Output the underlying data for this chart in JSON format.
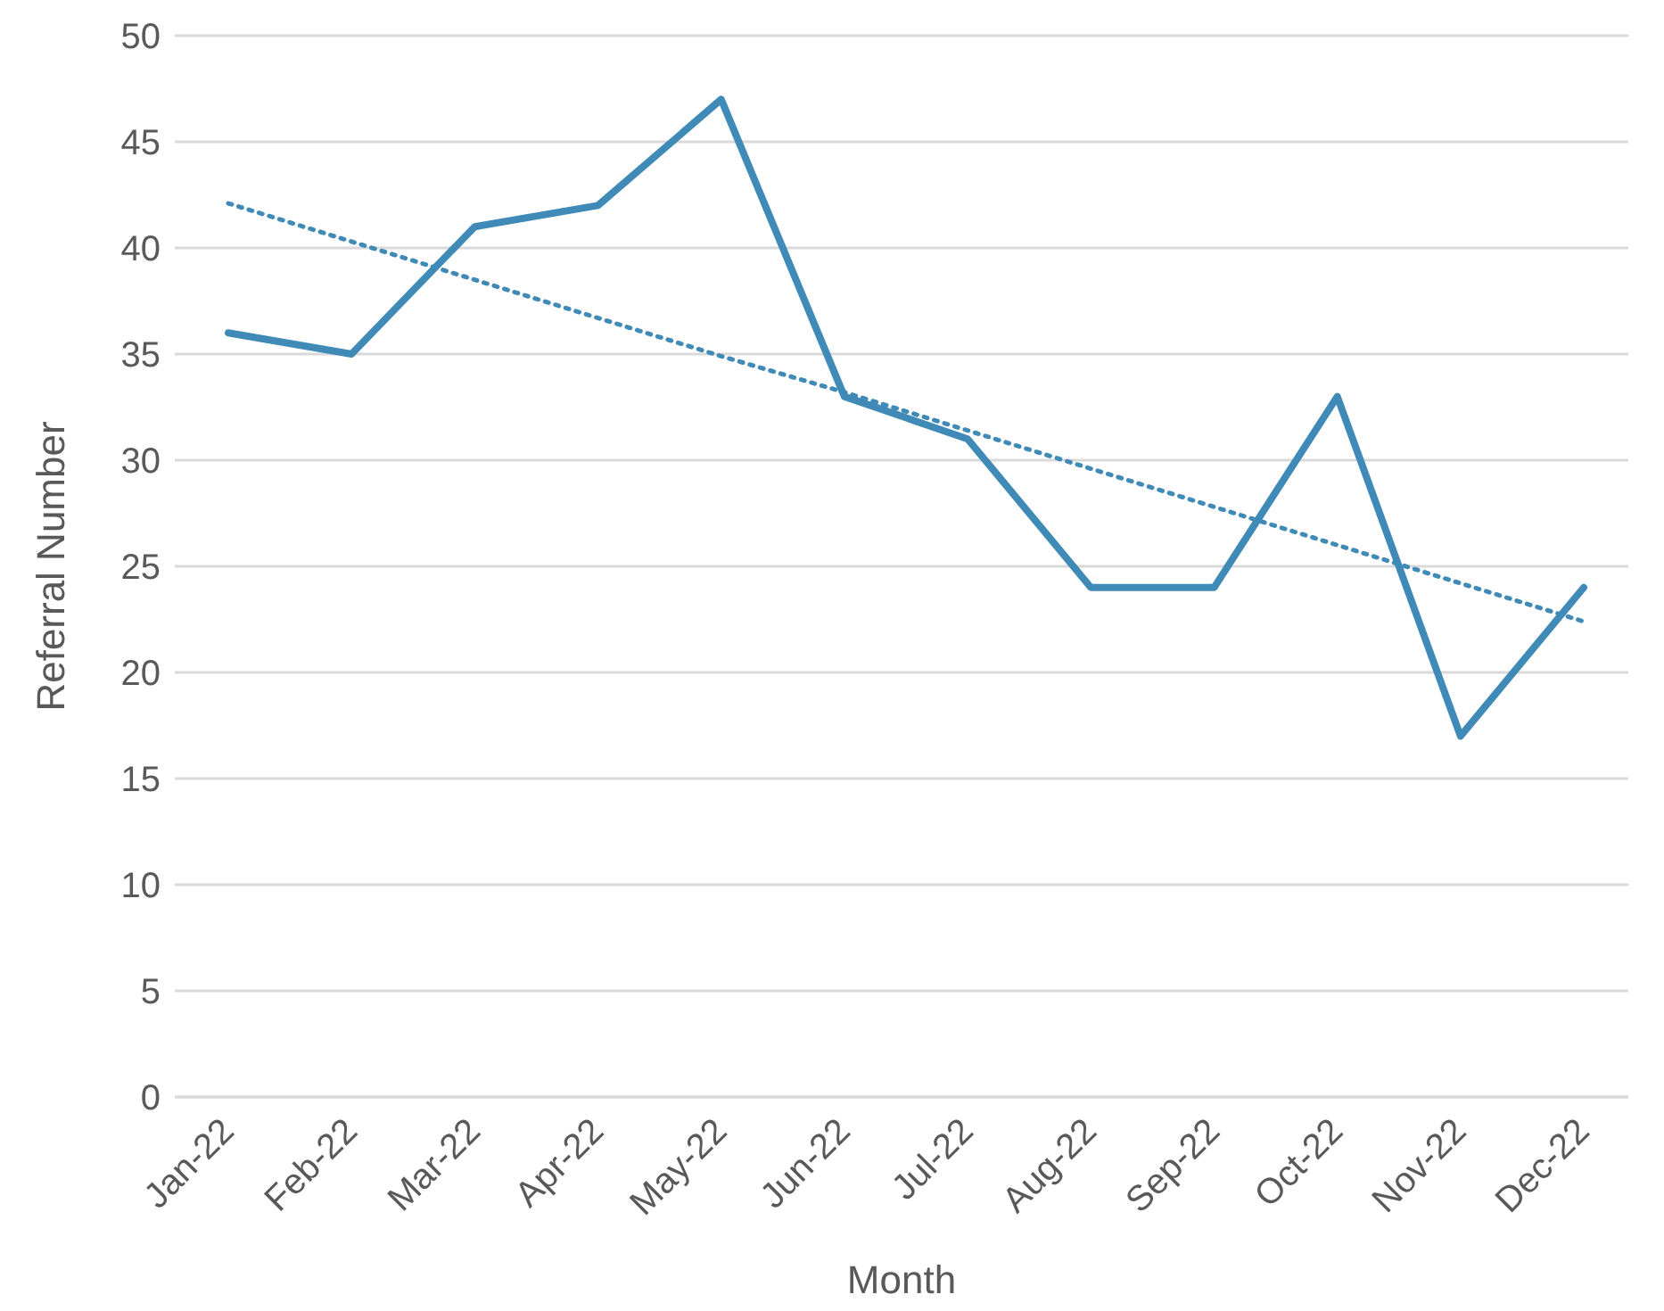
{
  "chart_data": {
    "type": "line",
    "xlabel": "Month",
    "ylabel": "Referral Number",
    "categories": [
      "Jan-22",
      "Feb-22",
      "Mar-22",
      "Apr-22",
      "May-22",
      "Jun-22",
      "Jul-22",
      "Aug-22",
      "Sep-22",
      "Oct-22",
      "Nov-22",
      "Dec-22"
    ],
    "series": [
      {
        "color": "#3f8ab7",
        "values": [
          36,
          35,
          41,
          42,
          47,
          33,
          31,
          24,
          24,
          33,
          17,
          24
        ]
      },
      {
        "color": "#3f8ab7",
        "line_style": "dotted",
        "values": [
          42.1,
          40.3,
          38.5,
          36.7,
          34.9,
          33.2,
          31.4,
          29.6,
          27.8,
          26.0,
          24.2,
          22.4
        ]
      }
    ],
    "ylim": [
      0,
      50
    ],
    "yticks": [
      0,
      5,
      10,
      15,
      20,
      25,
      30,
      35,
      40,
      45,
      50
    ],
    "grid": "y",
    "legend": false,
    "marker": "none"
  }
}
